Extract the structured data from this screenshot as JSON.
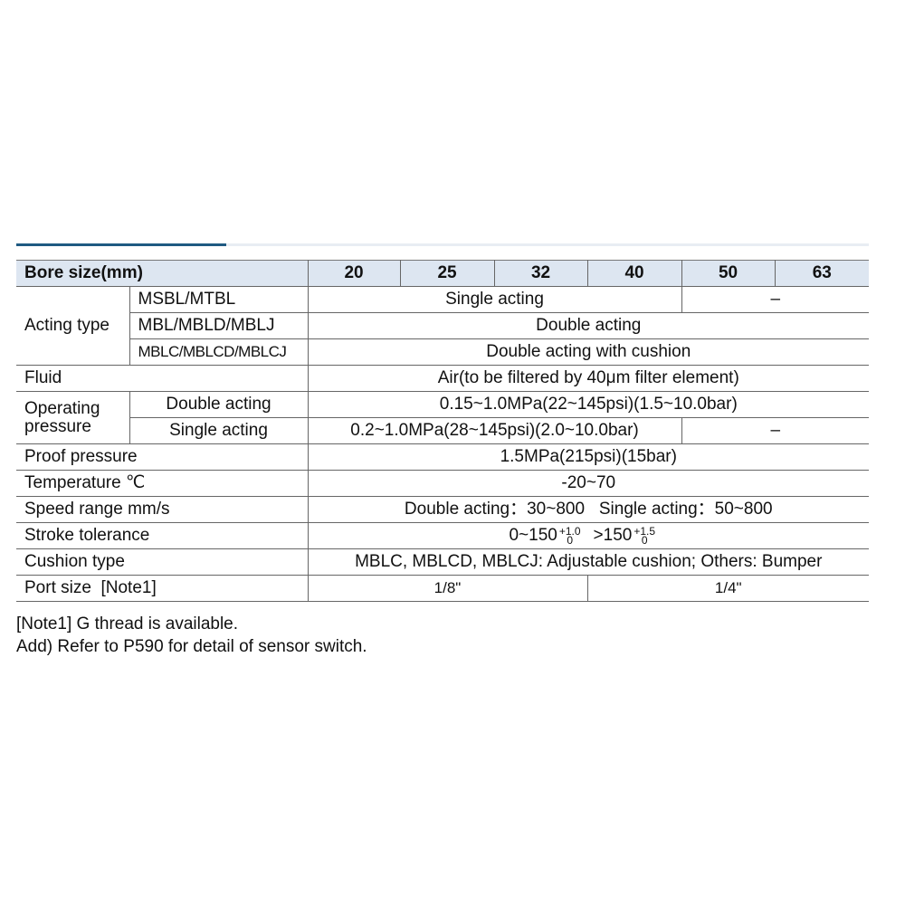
{
  "header": {
    "label": "Bore size(mm)",
    "bores": [
      "20",
      "25",
      "32",
      "40",
      "50",
      "63"
    ]
  },
  "acting_type": {
    "label": "Acting type",
    "rows": [
      {
        "model": "MSBL/MTBL",
        "value": "Single acting",
        "value_large": "–"
      },
      {
        "model": "MBL/MBLD/MBLJ",
        "value": "Double acting"
      },
      {
        "model": "MBLC/MBLCD/MBLCJ",
        "value": "Double acting with cushion"
      }
    ]
  },
  "fluid": {
    "label": "Fluid",
    "value": "Air(to be filtered by 40μm filter element)"
  },
  "operating_pressure": {
    "label": "Operating pressure",
    "double": {
      "label": "Double acting",
      "value": "0.15~1.0MPa(22~145psi)(1.5~10.0bar)"
    },
    "single": {
      "label": "Single acting",
      "value": "0.2~1.0MPa(28~145psi)(2.0~10.0bar)",
      "value_large": "–"
    }
  },
  "proof_pressure": {
    "label": "Proof pressure",
    "value": "1.5MPa(215psi)(15bar)"
  },
  "temperature": {
    "label": "Temperature ℃",
    "value": "-20~70"
  },
  "speed_range": {
    "label": "Speed range  mm/s",
    "value": "Double acting：30~800   Single acting：50~800"
  },
  "stroke_tolerance": {
    "label": "Stroke tolerance",
    "a": "0~150",
    "a_upper": "+1.0",
    "a_lower": "0",
    "b": ">150",
    "b_upper": "+1.5",
    "b_lower": "0"
  },
  "cushion_type": {
    "label": "Cushion type",
    "value": "MBLC, MBLCD, MBLCJ: Adjustable cushion;  Others: Bumper"
  },
  "port_size": {
    "label": "Port size  [Note1]",
    "small": "1/8\"",
    "large": "1/4\""
  },
  "notes": [
    "[Note1] G thread is available.",
    "Add) Refer to P590 for detail of sensor switch."
  ],
  "colors": {
    "header_bg": "#dde6f1",
    "accent": "#1f5a82"
  }
}
